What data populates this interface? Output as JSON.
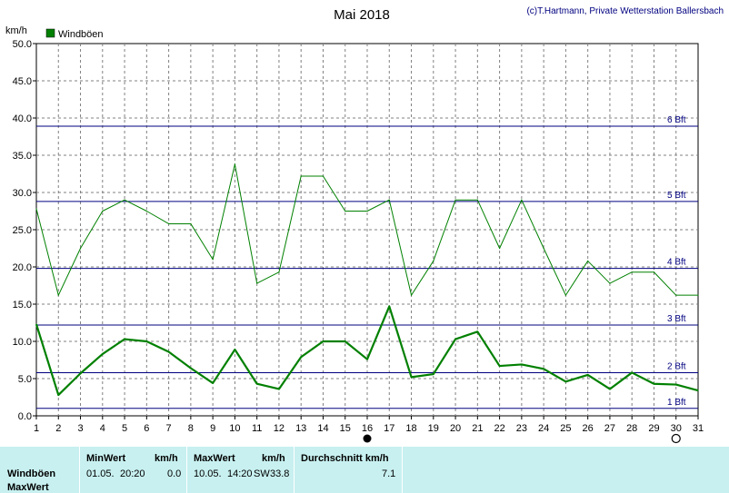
{
  "chart_data": {
    "type": "line",
    "title": "Mai 2018",
    "credit": "(c)T.Hartmann, Private Wetterstation Ballersbach",
    "ylabel": "km/h",
    "ylim": [
      0,
      50
    ],
    "xlim": [
      1,
      31
    ],
    "x": [
      1,
      2,
      3,
      4,
      5,
      6,
      7,
      8,
      9,
      10,
      11,
      12,
      13,
      14,
      15,
      16,
      17,
      18,
      19,
      20,
      21,
      22,
      23,
      24,
      25,
      26,
      27,
      28,
      29,
      30,
      31
    ],
    "y_ticks": [
      "0.0",
      "5.0",
      "10.0",
      "15.0",
      "20.0",
      "25.0",
      "30.0",
      "35.0",
      "40.0",
      "45.0",
      "50.0"
    ],
    "x_ticks": [
      "1",
      "2",
      "3",
      "4",
      "5",
      "6",
      "7",
      "8",
      "9",
      "10",
      "11",
      "12",
      "13",
      "14",
      "15",
      "16",
      "17",
      "18",
      "19",
      "20",
      "21",
      "22",
      "23",
      "24",
      "25",
      "26",
      "27",
      "28",
      "29",
      "30",
      "31"
    ],
    "legend": "Windböen",
    "grid": true,
    "colors": {
      "series": "#008000",
      "reference": "#000080",
      "grid": "#808080",
      "legend_box": "#008000"
    },
    "series": [
      {
        "name": "Windböen",
        "values": [
          27.8,
          16.2,
          22.5,
          27.5,
          29.0,
          27.5,
          25.8,
          25.8,
          21.0,
          33.8,
          17.8,
          19.3,
          32.2,
          32.2,
          27.5,
          27.5,
          29.0,
          16.2,
          20.8,
          29.0,
          29.0,
          22.5,
          29.0,
          22.5,
          16.2,
          20.8,
          17.8,
          19.3,
          19.3,
          16.2,
          16.2
        ]
      },
      {
        "values": [
          12.3,
          2.8,
          5.7,
          8.3,
          10.3,
          10.0,
          8.6,
          6.4,
          4.4,
          8.9,
          4.3,
          3.6,
          7.9,
          10.0,
          10.0,
          7.6,
          14.7,
          5.2,
          5.6,
          10.3,
          11.3,
          6.7,
          6.9,
          6.3,
          4.6,
          5.5,
          3.6,
          5.8,
          4.3,
          4.2,
          3.4
        ]
      }
    ],
    "reference_lines": [
      {
        "label": "1 Bft",
        "value": 1.0
      },
      {
        "label": "2 Bft",
        "value": 5.8
      },
      {
        "label": "3 Bft",
        "value": 12.2
      },
      {
        "label": "4 Bft",
        "value": 19.8
      },
      {
        "label": "5 Bft",
        "value": 28.8
      },
      {
        "label": "6 Bft",
        "value": 38.9
      }
    ],
    "markers": {
      "full_moon_day": 16,
      "new_moon_day": 30
    }
  },
  "stats": {
    "row1_label": "Windböen",
    "row2_label": "MaxWert",
    "min_header": "MinWert",
    "min_unit": "km/h",
    "min_date": "01.05.",
    "min_time": "20:20",
    "min_value": "0.0",
    "max_header": "MaxWert",
    "max_unit": "km/h",
    "max_date": "10.05.",
    "max_time": "14:20",
    "max_dir": "SW",
    "max_value": "33.8",
    "avg_header": "Durchschnitt km/h",
    "avg_value": "7.1"
  }
}
